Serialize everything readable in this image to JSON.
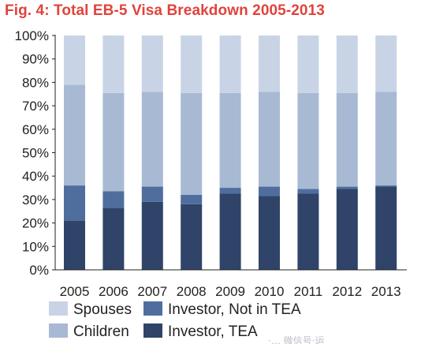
{
  "chart_data": {
    "type": "bar",
    "stacked": true,
    "title": "Fig. 4: Total EB-5 Visa Breakdown 2005-2013",
    "categories": [
      "2005",
      "2006",
      "2007",
      "2008",
      "2009",
      "2010",
      "2011",
      "2012",
      "2013"
    ],
    "series": [
      {
        "name": "Investor, TEA",
        "color": "#2f4468",
        "values": [
          21,
          26.5,
          29,
          28,
          32.5,
          31.5,
          32.5,
          34.5,
          35.5
        ]
      },
      {
        "name": "Investor, Not in TEA",
        "color": "#4f6e9e",
        "values": [
          15,
          7,
          6.5,
          4,
          2.5,
          4,
          2,
          1,
          0.5
        ]
      },
      {
        "name": "Children",
        "color": "#a8b9d3",
        "values": [
          43,
          42,
          40.5,
          43.5,
          40.5,
          40.5,
          41,
          40,
          40
        ]
      },
      {
        "name": "Spouses",
        "color": "#c8d4e6",
        "values": [
          21,
          24.5,
          24,
          24.5,
          24.5,
          24,
          24.5,
          24.5,
          24
        ]
      }
    ],
    "ylim": [
      0,
      100
    ],
    "yticks": [
      "0%",
      "10%",
      "20%",
      "30%",
      "40%",
      "50%",
      "60%",
      "70%",
      "80%",
      "90%",
      "100%"
    ],
    "xlabel": "",
    "ylabel": "",
    "grid": false,
    "legend_position": "bottom",
    "legend_order": [
      "Spouses",
      "Investor, Not in TEA",
      "Children",
      "Investor, TEA"
    ],
    "title_color": "#e0433c",
    "watermark": "·… 微信号·运"
  }
}
